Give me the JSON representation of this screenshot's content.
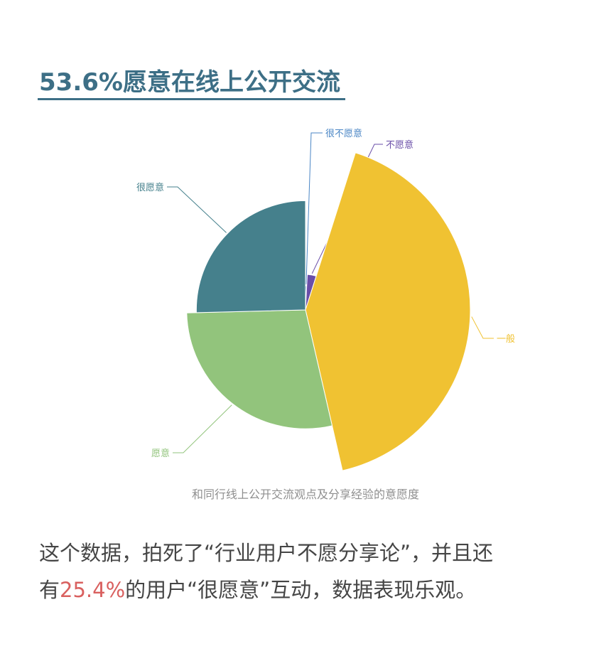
{
  "headline": "53.6%愿意在线上公开交流",
  "chart_data": {
    "type": "pie",
    "variant": "rose",
    "title": "和同行线上公开交流观点及分享经验的意愿度",
    "slices": [
      {
        "label": "很不愿意",
        "value": 0.8,
        "color": "#4a86c5"
      },
      {
        "label": "不愿意",
        "value": 4.1,
        "color": "#6a4ea8"
      },
      {
        "label": "一般",
        "value": 41.5,
        "color": "#f0c232"
      },
      {
        "label": "愿意",
        "value": 28.2,
        "color": "#92c47c"
      },
      {
        "label": "很愿意",
        "value": 25.4,
        "color": "#45808c"
      }
    ]
  },
  "body": {
    "line1": "这个数据，拍死了“行业用户不愿分享论”，并且还",
    "line2_pre": "有",
    "highlight": "25.4%",
    "line2_post": "的用户“很愿意”互动，数据表现乐观。"
  }
}
